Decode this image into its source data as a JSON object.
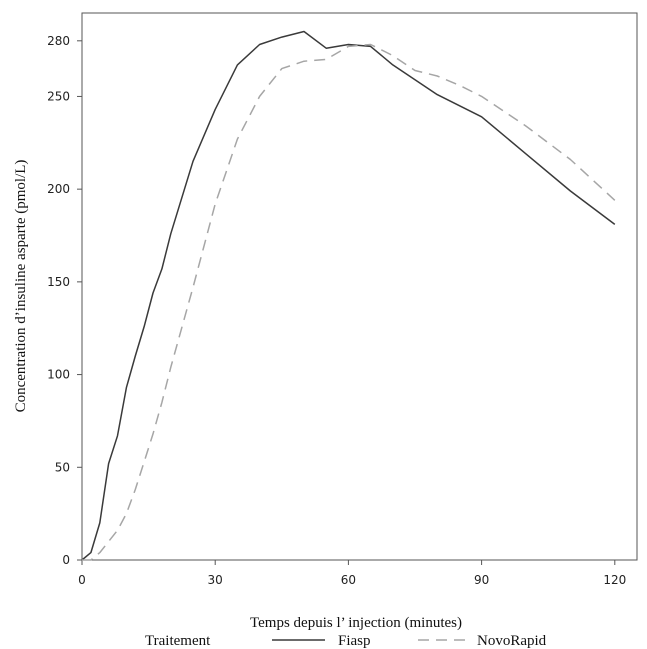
{
  "chart_data": {
    "type": "line",
    "xlabel": "Temps depuis l’ injection (minutes)",
    "ylabel": "Concentration d’insuline asparte (pmol/L)",
    "xlim": [
      0,
      125
    ],
    "ylim": [
      0,
      295
    ],
    "x_ticks": [
      0,
      30,
      60,
      90,
      120
    ],
    "y_ticks": [
      0,
      50,
      100,
      150,
      200,
      250,
      280
    ],
    "grid": false,
    "legend": {
      "title": "Traitement",
      "position": "bottom",
      "entries": [
        "Fiasp",
        "NovoRapid"
      ]
    },
    "series": [
      {
        "name": "Fiasp",
        "style": "solid",
        "color": "#3a3a3a",
        "x": [
          0,
          2,
          4,
          6,
          8,
          10,
          12,
          14,
          16,
          18,
          20,
          25,
          30,
          35,
          40,
          45,
          50,
          55,
          60,
          65,
          70,
          80,
          90,
          100,
          110,
          120
        ],
        "y": [
          0,
          4,
          20,
          52,
          67,
          93,
          110,
          126,
          144,
          157,
          176,
          215,
          243,
          267,
          278,
          282,
          285,
          276,
          278,
          277,
          267,
          251,
          239,
          219,
          199,
          181
        ]
      },
      {
        "name": "NovoRapid",
        "style": "dashed",
        "color": "#a6a6a6",
        "x": [
          0,
          2,
          4,
          6,
          8,
          10,
          12,
          14,
          16,
          18,
          20,
          25,
          30,
          35,
          40,
          45,
          50,
          55,
          60,
          65,
          70,
          75,
          80,
          85,
          90,
          100,
          110,
          120
        ],
        "y": [
          0,
          0,
          4,
          10,
          16,
          25,
          38,
          53,
          68,
          85,
          104,
          147,
          192,
          227,
          250,
          265,
          269,
          270,
          277,
          278,
          272,
          264,
          261,
          256,
          250,
          234,
          216,
          194
        ]
      }
    ]
  }
}
